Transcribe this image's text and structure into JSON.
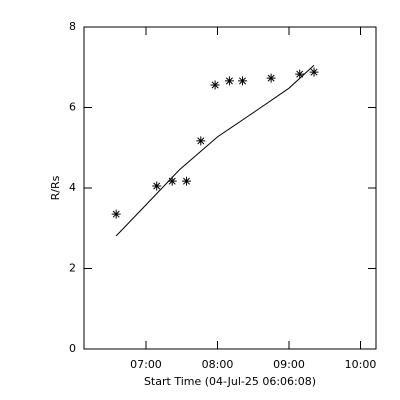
{
  "chart_data": {
    "type": "scatter",
    "xlabel": "Start Time (04-Jul-25 06:06:08)",
    "ylabel": "R/Rs",
    "series": [
      {
        "type": "scatter",
        "marker": "asterisk",
        "color": "#000000",
        "x": [
          "06:35",
          "07:09",
          "07:22",
          "07:34",
          "07:46",
          "07:58",
          "08:10",
          "08:21",
          "08:45",
          "09:09",
          "09:21"
        ],
        "values": [
          3.35,
          4.05,
          4.17,
          4.17,
          5.17,
          6.56,
          6.66,
          6.66,
          6.73,
          6.83,
          6.88
        ]
      },
      {
        "type": "line",
        "color": "#000000",
        "x": [
          "06:35",
          "07:00",
          "07:28",
          "08:00",
          "08:27",
          "09:00",
          "09:21"
        ],
        "values": [
          2.81,
          3.58,
          4.45,
          5.27,
          5.81,
          6.48,
          7.05
        ]
      }
    ],
    "xlim": [
      "06:08",
      "10:13"
    ],
    "xticks": [
      "07:00",
      "08:00",
      "09:00",
      "10:00"
    ],
    "ylim": [
      0,
      8
    ],
    "yticks": [
      0,
      2,
      4,
      6,
      8
    ]
  }
}
